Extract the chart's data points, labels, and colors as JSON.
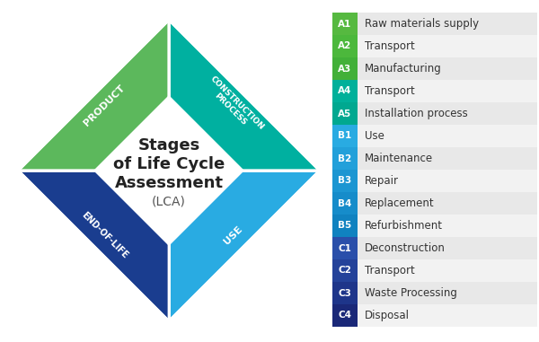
{
  "title_lines": [
    "Stages",
    "of Life Cycle",
    "Assessment",
    "(LCA)"
  ],
  "title_bold": [
    true,
    true,
    true,
    false
  ],
  "title_fontsize": [
    13,
    13,
    13,
    10
  ],
  "diamond_segments": [
    {
      "label": "PRODUCT",
      "color_start": "#6cc04a",
      "color_end": "#4aaa4a",
      "position": "top-left",
      "rotation": 45
    },
    {
      "label": "CONSTRUCTION\nPROCESS",
      "color_start": "#00c0a0",
      "color_end": "#009090",
      "position": "top-right",
      "rotation": -45
    },
    {
      "label": "USE",
      "color_start": "#20b8f0",
      "color_end": "#1090e0",
      "position": "bottom-right",
      "rotation": 45
    },
    {
      "label": "END-OF-LIFE",
      "color_start": "#2060c0",
      "color_end": "#1a3a8e",
      "position": "bottom-left",
      "rotation": -45
    }
  ],
  "segment_colors": [
    "#5cb85c",
    "#00b0a0",
    "#29abe2",
    "#1a3d8f"
  ],
  "legend_items": [
    {
      "code": "A1",
      "label": "Raw materials supply",
      "color": "#56b940"
    },
    {
      "code": "A2",
      "label": "Transport",
      "color": "#4cb83c"
    },
    {
      "code": "A3",
      "label": "Manufacturing",
      "color": "#42b038"
    },
    {
      "code": "A4",
      "label": "Transport",
      "color": "#00b09a"
    },
    {
      "code": "A5",
      "label": "Installation process",
      "color": "#00a890"
    },
    {
      "code": "B1",
      "label": "Use",
      "color": "#29abe2"
    },
    {
      "code": "B2",
      "label": "Maintenance",
      "color": "#22a0da"
    },
    {
      "code": "B3",
      "label": "Repair",
      "color": "#1c96d2"
    },
    {
      "code": "B4",
      "label": "Replacement",
      "color": "#168cca"
    },
    {
      "code": "B5",
      "label": "Refurbishment",
      "color": "#1082c0"
    },
    {
      "code": "C1",
      "label": "Deconstruction",
      "color": "#2a4faa"
    },
    {
      "code": "C2",
      "label": "Transport",
      "color": "#24429a"
    },
    {
      "code": "C3",
      "label": "Waste Processing",
      "color": "#1e358a"
    },
    {
      "code": "C4",
      "label": "Disposal",
      "color": "#1a2878"
    }
  ],
  "bg_color": "#ffffff",
  "legend_odd_bg": "#e8e8e8",
  "legend_even_bg": "#f2f2f2"
}
